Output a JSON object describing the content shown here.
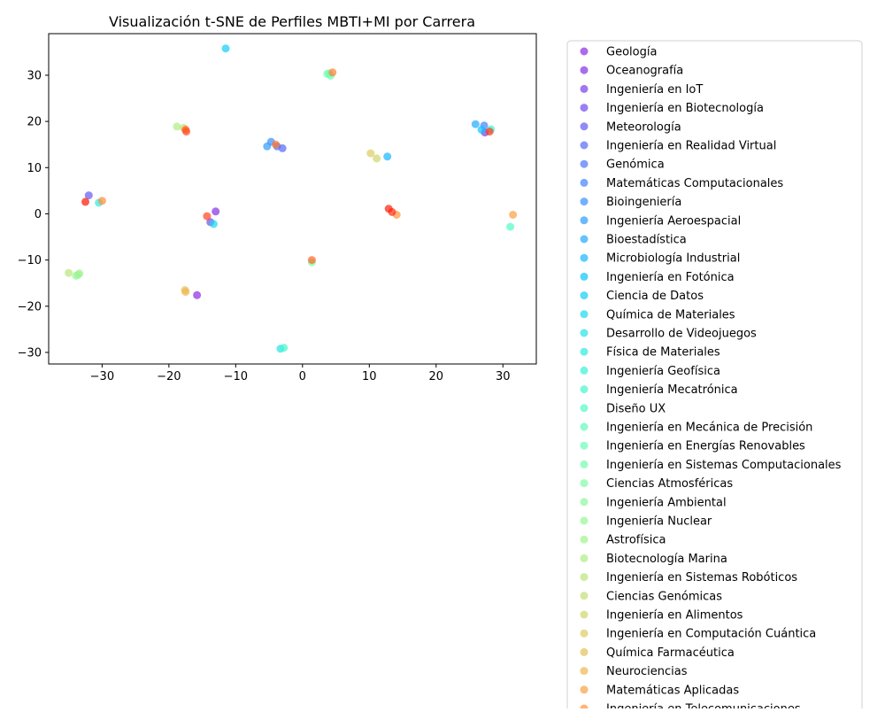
{
  "chart_data": {
    "type": "scatter",
    "title": "Visualización t-SNE de Perfiles MBTI+MI por Carrera",
    "xlabel": "",
    "ylabel": "",
    "xlim": [
      -38,
      35
    ],
    "ylim": [
      -32.5,
      39
    ],
    "x_ticks": [
      -30,
      -20,
      -10,
      0,
      10,
      20,
      30
    ],
    "y_ticks": [
      -30,
      -20,
      -10,
      0,
      10,
      20,
      30
    ],
    "x_tick_labels": [
      "−30",
      "−20",
      "−10",
      "0",
      "10",
      "20",
      "30"
    ],
    "y_tick_labels": [
      "−30",
      "−20",
      "−10",
      "0",
      "10",
      "20",
      "30"
    ],
    "grid": false,
    "legend_position": "outside-right",
    "series": [
      {
        "name": "Geología",
        "color": "#8b2be2",
        "points": [
          [
            -15.8,
            -17.6
          ]
        ]
      },
      {
        "name": "Oceanografía",
        "color": "#8530e4",
        "points": [
          [
            -13.0,
            0.5
          ]
        ]
      },
      {
        "name": "Ingeniería en IoT",
        "color": "#7a3ee9",
        "points": [
          [
            27.3,
            17.6
          ]
        ]
      },
      {
        "name": "Ingeniería en Biotecnología",
        "color": "#6f4cee",
        "points": [
          [
            -13.8,
            -1.8
          ]
        ]
      },
      {
        "name": "Meteorología",
        "color": "#645af2",
        "points": [
          [
            -32.0,
            4.0
          ]
        ]
      },
      {
        "name": "Ingeniería en Realidad Virtual",
        "color": "#5968f5",
        "points": [
          [
            -3.0,
            14.2
          ]
        ]
      },
      {
        "name": "Genómica",
        "color": "#4e75f8",
        "points": [
          [
            -3.8,
            14.6
          ]
        ]
      },
      {
        "name": "Matemáticas Computacionales",
        "color": "#4383fa",
        "points": [
          [
            27.2,
            19.1
          ]
        ]
      },
      {
        "name": "Bioingeniería",
        "color": "#3890fc",
        "points": [
          [
            -4.7,
            15.6
          ]
        ]
      },
      {
        "name": "Ingeniería Aeroespacial",
        "color": "#2d9dfd",
        "points": [
          [
            -5.3,
            14.6
          ]
        ]
      },
      {
        "name": "Bioestadística",
        "color": "#22aafe",
        "points": [
          [
            25.9,
            19.4
          ]
        ]
      },
      {
        "name": "Microbiología Industrial",
        "color": "#17b7fe",
        "points": [
          [
            12.7,
            12.4
          ]
        ]
      },
      {
        "name": "Ingeniería en Fotónica",
        "color": "#0cc4fe",
        "points": [
          [
            26.8,
            18.2
          ]
        ]
      },
      {
        "name": "Ciencia de Datos",
        "color": "#10cff5",
        "points": [
          [
            -11.5,
            35.8
          ]
        ]
      },
      {
        "name": "Química de Materiales",
        "color": "#1bd9ee",
        "points": [
          [
            -13.3,
            -2.2
          ]
        ]
      },
      {
        "name": "Desarrollo de Videojuegos",
        "color": "#26e2e7",
        "points": [
          [
            -3.3,
            -29.2
          ]
        ]
      },
      {
        "name": "Física de Materiales",
        "color": "#31eadf",
        "points": [
          [
            -30.5,
            2.4
          ]
        ]
      },
      {
        "name": "Ingeniería Geofísica",
        "color": "#3cf0d7",
        "points": [
          [
            28.2,
            18.3
          ]
        ]
      },
      {
        "name": "Ingeniería Mecatrónica",
        "color": "#47f5cf",
        "points": [
          [
            -2.8,
            -29.0
          ]
        ]
      },
      {
        "name": "Diseño UX",
        "color": "#52f9c7",
        "points": [
          [
            31.1,
            -2.8
          ]
        ]
      },
      {
        "name": "Ingeniería en Mecánica de Precisión",
        "color": "#5efbbf",
        "points": [
          [
            4.0,
            30.4
          ]
        ]
      },
      {
        "name": "Ingeniería en Energías Renovables",
        "color": "#69fcb7",
        "points": [
          [
            4.2,
            29.9
          ]
        ]
      },
      {
        "name": "Ingeniería en Sistemas Computacionales",
        "color": "#74fcae",
        "points": [
          [
            3.7,
            30.3
          ]
        ]
      },
      {
        "name": "Ciencias Atmosféricas",
        "color": "#80fba6",
        "points": [
          [
            1.4,
            -10.5
          ]
        ]
      },
      {
        "name": "Ingeniería Ambiental",
        "color": "#8cf99e",
        "points": [
          [
            -33.6,
            -13.2
          ]
        ]
      },
      {
        "name": "Ingeniería Nuclear",
        "color": "#97f695",
        "points": [
          [
            -33.9,
            -13.4
          ]
        ]
      },
      {
        "name": "Astrofísica",
        "color": "#a3f18d",
        "points": [
          [
            -33.4,
            -12.9
          ]
        ]
      },
      {
        "name": "Biotecnología Marina",
        "color": "#aeec84",
        "points": [
          [
            -18.8,
            18.9
          ]
        ]
      },
      {
        "name": "Ingeniería en Sistemas Robóticos",
        "color": "#bae57b",
        "points": [
          [
            -35.0,
            -12.8
          ]
        ]
      },
      {
        "name": "Ciencias Genómicas",
        "color": "#c5de73",
        "points": [
          [
            -17.8,
            18.6
          ]
        ]
      },
      {
        "name": "Ingeniería en Alimentos",
        "color": "#d0d56a",
        "points": [
          [
            11.1,
            12.0
          ]
        ]
      },
      {
        "name": "Ingeniería en Computación Cuántica",
        "color": "#dbcc61",
        "points": [
          [
            10.2,
            13.1
          ]
        ]
      },
      {
        "name": "Química Farmacéutica",
        "color": "#e6c158",
        "points": [
          [
            -17.6,
            -16.5
          ]
        ]
      },
      {
        "name": "Neurociencias",
        "color": "#f0b64f",
        "points": [
          [
            -17.5,
            -16.9
          ]
        ]
      },
      {
        "name": "Matemáticas Aplicadas",
        "color": "#fa9f44",
        "points": [
          [
            31.5,
            -0.2
          ]
        ]
      },
      {
        "name": "Ingeniería en Telecomunicaciones",
        "color": "#ff943c",
        "points": [
          [
            14.1,
            -0.2
          ]
        ]
      },
      {
        "name": "",
        "color": "#ff8c38",
        "points": [
          [
            -30.0,
            2.8
          ]
        ]
      },
      {
        "name": "",
        "color": "#ff8032",
        "points": [
          [
            4.5,
            30.6
          ]
        ]
      },
      {
        "name": "",
        "color": "#ff742c",
        "points": [
          [
            -4.0,
            15.0
          ]
        ]
      },
      {
        "name": "",
        "color": "#ff6826",
        "points": [
          [
            1.4,
            -10.0
          ]
        ]
      },
      {
        "name": "",
        "color": "#ff5c20",
        "points": [
          [
            -17.5,
            18.2
          ]
        ]
      },
      {
        "name": "",
        "color": "#ff5020",
        "points": [
          [
            -17.4,
            17.8
          ]
        ]
      },
      {
        "name": "",
        "color": "#ff441a",
        "points": [
          [
            -14.3,
            -0.5
          ]
        ]
      },
      {
        "name": "",
        "color": "#ff3814",
        "points": [
          [
            28.0,
            17.8
          ]
        ]
      },
      {
        "name": "",
        "color": "#ff2c0e",
        "points": [
          [
            13.4,
            0.4
          ]
        ]
      },
      {
        "name": "",
        "color": "#ff2008",
        "points": [
          [
            12.9,
            1.1
          ]
        ]
      },
      {
        "name": "",
        "color": "#ff1404",
        "points": [
          [
            -32.5,
            2.6
          ]
        ]
      }
    ]
  }
}
